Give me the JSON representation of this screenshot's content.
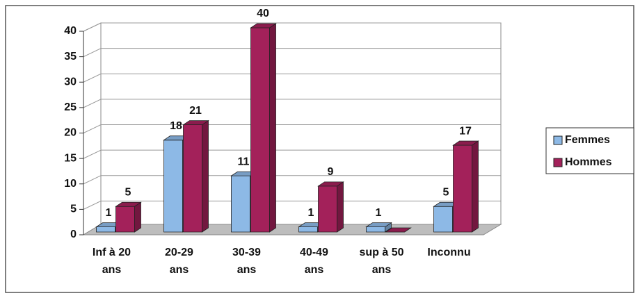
{
  "chart_data": {
    "type": "bar3d",
    "categories": [
      [
        "Inf à 20",
        "ans"
      ],
      [
        "20-29",
        "ans"
      ],
      [
        "30-39",
        "ans"
      ],
      [
        "40-49",
        "ans"
      ],
      [
        "sup à  50",
        "ans"
      ],
      [
        "Inconnu"
      ]
    ],
    "series": [
      {
        "name": "Femmes",
        "color": "#8db9e6",
        "values": [
          1,
          18,
          11,
          1,
          1,
          5
        ]
      },
      {
        "name": "Hommes",
        "color": "#a3215a",
        "values": [
          5,
          21,
          40,
          9,
          0,
          17
        ],
        "value_labels": [
          5,
          21,
          40,
          9,
          null,
          17
        ]
      }
    ],
    "ylim": [
      0,
      40
    ],
    "yticks": [
      0,
      5,
      10,
      15,
      20,
      25,
      30,
      35,
      40
    ],
    "grid": true,
    "legend": "right"
  }
}
